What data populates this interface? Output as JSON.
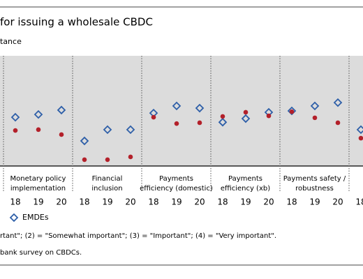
{
  "chart_data": {
    "type": "scatter",
    "title": "for issuing a wholesale CBDC",
    "y_label": "tance",
    "categories": [
      "18",
      "19",
      "20",
      "18",
      "19",
      "20",
      "18",
      "19",
      "20",
      "18",
      "19",
      "20",
      "18",
      "19",
      "20",
      "18"
    ],
    "groups": [
      [
        "Monetary policy",
        "implementation"
      ],
      [
        "Financial",
        "inclusion"
      ],
      [
        "Payments",
        "efficiency (domestic)"
      ],
      [
        "Payments",
        "efficiency (xb)"
      ],
      [
        "Payments safety /",
        "robustness"
      ]
    ],
    "series": [
      {
        "name": "EMDEs",
        "color": "#2e5fa8",
        "marker": "diamond",
        "values": [
          1.77,
          1.87,
          2.03,
          0.91,
          1.32,
          1.32,
          1.92,
          2.18,
          2.1,
          1.59,
          1.72,
          1.95,
          2.0,
          2.18,
          2.3,
          1.32
        ]
      },
      {
        "color": "#b3202a",
        "marker": "dot",
        "values": [
          1.29,
          1.32,
          1.14,
          0.23,
          0.23,
          0.33,
          1.77,
          1.54,
          1.57,
          1.8,
          1.95,
          1.82,
          1.97,
          1.75,
          1.57,
          1.01
        ]
      }
    ],
    "ylim": [
      0,
      4
    ],
    "note": "rtant\"; (2) = \"Somewhat important\"; (3) = \"Important\"; (4) = \"Very important\".",
    "source": "bank survey on CBDCs."
  }
}
